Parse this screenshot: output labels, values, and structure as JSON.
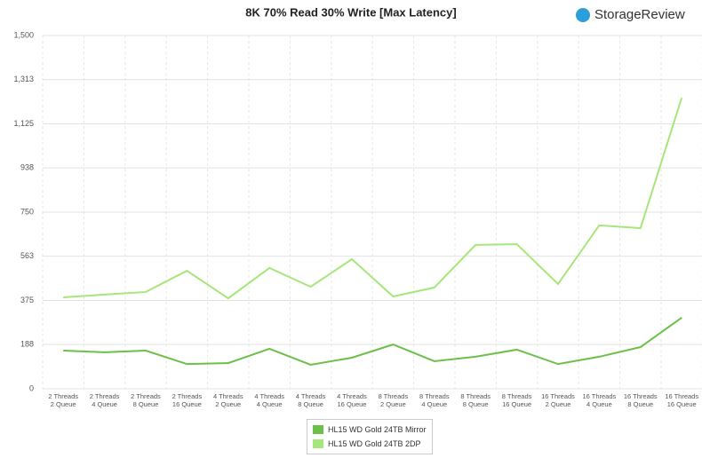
{
  "chart_data": {
    "type": "line",
    "title": "8K 70% Read 30% Write [Max Latency]",
    "brand": "StorageReview",
    "categories": [
      "2 Threads\n2 Queue",
      "2 Threads\n4 Queue",
      "2 Threads\n8 Queue",
      "2 Threads\n16 Queue",
      "4 Threads\n2 Queue",
      "4 Threads\n4 Queue",
      "4 Threads\n8 Queue",
      "4 Threads\n16 Queue",
      "8 Threads\n2 Queue",
      "8 Threads\n4 Queue",
      "8 Threads\n8 Queue",
      "8 Threads\n16 Queue",
      "16 Threads\n2 Queue",
      "16 Threads\n4 Queue",
      "16 Threads\n8 Queue",
      "16 Threads\n16 Queue"
    ],
    "series": [
      {
        "name": "HL15 WD Gold 24TB Mirror",
        "color": "#6cc04a",
        "values": [
          162,
          155,
          162,
          105,
          109,
          170,
          102,
          132,
          188,
          117,
          136,
          166,
          105,
          136,
          177,
          302
        ]
      },
      {
        "name": "HL15 WD Gold 24TB 2DP",
        "color": "#a6e67a",
        "values": [
          388,
          400,
          411,
          501,
          384,
          513,
          433,
          550,
          392,
          430,
          611,
          614,
          445,
          694,
          682,
          1236
        ]
      }
    ],
    "ylim": [
      0,
      1500
    ],
    "yticks": [
      0,
      188,
      375,
      563,
      750,
      938,
      {
        "value": 1125,
        "label": "1,125"
      },
      {
        "value": 1313,
        "label": "1,313"
      },
      {
        "value": 1500,
        "label": "1,500"
      }
    ],
    "grid": true
  }
}
